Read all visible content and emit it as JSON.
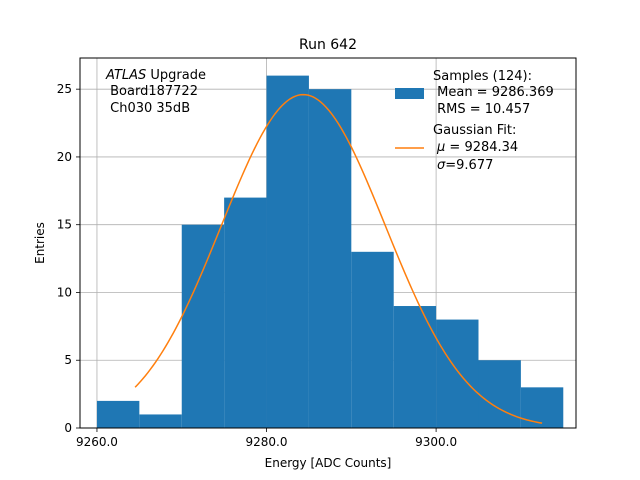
{
  "chart_data": {
    "type": "bar",
    "title": "Run 642",
    "xlabel": "Energy [ADC Counts]",
    "ylabel": "Entries",
    "xlim": [
      9258.0,
      9316.5
    ],
    "ylim": [
      0,
      27.3
    ],
    "xticks": [
      9260,
      9280,
      9300
    ],
    "xtick_labels": [
      "9260.0",
      "9280.0",
      "9300.0"
    ],
    "yticks": [
      0,
      5,
      10,
      15,
      20,
      25
    ],
    "ytick_labels": [
      "0",
      "5",
      "10",
      "15",
      "20",
      "25"
    ],
    "grid": true,
    "bin_edges": [
      9260.0,
      9265.0,
      9270.0,
      9275.0,
      9280.0,
      9285.0,
      9290.0,
      9295.0,
      9300.0,
      9305.0,
      9310.0,
      9315.0
    ],
    "values": [
      2,
      1,
      15,
      17,
      26,
      25,
      13,
      9,
      8,
      5,
      3
    ],
    "series": [
      {
        "name": "Samples (124):",
        "type": "histogram",
        "color": "#1f77b4"
      },
      {
        "name": "Gaussian Fit:",
        "type": "line",
        "color": "#ff7f0e",
        "fit": {
          "amplitude": 24.6,
          "mu": 9284.34,
          "sigma": 9.677,
          "x_range": [
            9264.5,
            9312.5
          ]
        }
      }
    ],
    "annotation": {
      "atlas": "ATLAS",
      "atlas_suffix": " Upgrade",
      "line2": " Board187722",
      "line3": " Ch030 35dB"
    },
    "legend": {
      "position": "top-right",
      "hist_title": "Samples (124):",
      "hist_mean": " Mean = 9286.369",
      "hist_rms": " RMS = 10.457",
      "fit_title": "Gaussian Fit:",
      "fit_mu_symbol": "μ",
      "fit_mu_value": " = 9284.34",
      "fit_sigma_symbol": "σ",
      "fit_sigma_value": "=9.677"
    }
  }
}
